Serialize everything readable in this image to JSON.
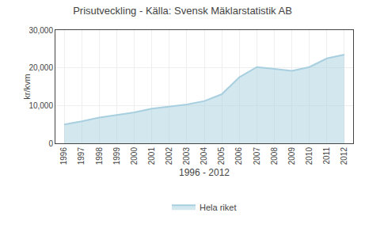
{
  "chart_data": {
    "type": "area",
    "title": "Prisutveckling - Källa: Svensk Mäklarstatistik AB",
    "xlabel": "1996 - 2012",
    "ylabel": "kr/kvm",
    "x": [
      1996,
      1997,
      1998,
      1999,
      2000,
      2001,
      2002,
      2003,
      2004,
      2005,
      2006,
      2007,
      2008,
      2009,
      2010,
      2011,
      2012
    ],
    "series": [
      {
        "name": "Hela riket",
        "color": "#a8cfe0",
        "values": [
          5000,
          5800,
          6800,
          7500,
          8200,
          9200,
          9800,
          10300,
          11200,
          13000,
          17500,
          20200,
          19700,
          19200,
          20200,
          22500,
          23500
        ]
      }
    ],
    "xlim": [
      1995.5,
      2012.5
    ],
    "xticks": [
      1996,
      1997,
      1998,
      1999,
      2000,
      2001,
      2002,
      2003,
      2004,
      2005,
      2006,
      2007,
      2008,
      2009,
      2010,
      2011,
      2012
    ],
    "ylim": [
      0,
      30000
    ],
    "yticks": [
      0,
      {
        "value": 10000,
        "label": "10,000"
      },
      {
        "value": 20000,
        "label": "20,000"
      },
      {
        "value": 30000,
        "label": "30,000"
      }
    ],
    "grid": true,
    "legend": "bottom"
  }
}
